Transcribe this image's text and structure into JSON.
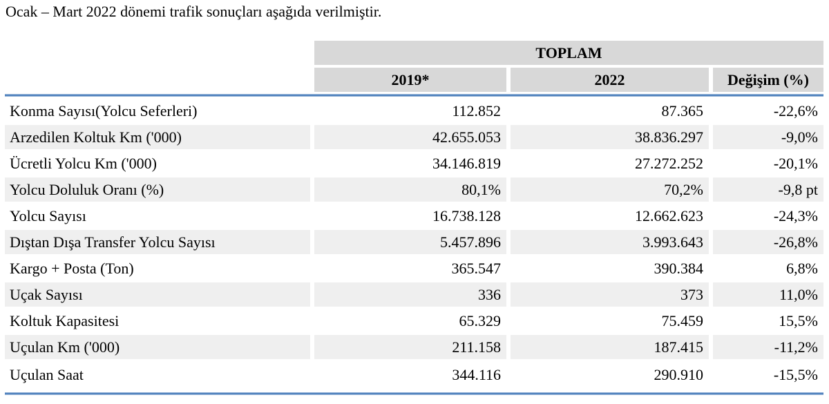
{
  "title": "Ocak – Mart 2022 dönemi trafik sonuçları aşağıda verilmiştir.",
  "table": {
    "group_header": "TOPLAM",
    "columns": [
      "2019*",
      "2022",
      "Değişim (%)"
    ],
    "rows": [
      {
        "label": "Konma Sayısı(Yolcu Seferleri)",
        "y2019": "112.852",
        "y2022": "87.365",
        "change": "-22,6%"
      },
      {
        "label": "Arzedilen Koltuk Km ('000)",
        "y2019": "42.655.053",
        "y2022": "38.836.297",
        "change": "-9,0%"
      },
      {
        "label": "Ücretli Yolcu Km ('000)",
        "y2019": "34.146.819",
        "y2022": "27.272.252",
        "change": "-20,1%"
      },
      {
        "label": "Yolcu Doluluk Oranı (%)",
        "y2019": "80,1%",
        "y2022": "70,2%",
        "change": "-9,8 pt"
      },
      {
        "label": "Yolcu Sayısı",
        "y2019": "16.738.128",
        "y2022": "12.662.623",
        "change": "-24,3%"
      },
      {
        "label": "Dıştan Dışa Transfer Yolcu Sayısı",
        "y2019": "5.457.896",
        "y2022": "3.993.643",
        "change": "-26,8%"
      },
      {
        "label": "Kargo + Posta (Ton)",
        "y2019": "365.547",
        "y2022": "390.384",
        "change": "6,8%"
      },
      {
        "label": "Uçak Sayısı",
        "y2019": "336",
        "y2022": "373",
        "change": "11,0%"
      },
      {
        "label": "Koltuk Kapasitesi",
        "y2019": "65.329",
        "y2022": "75.459",
        "change": "15,5%"
      },
      {
        "label": "Uçulan Km ('000)",
        "y2019": "211.158",
        "y2022": "187.415",
        "change": "-11,2%"
      },
      {
        "label": "Uçulan Saat",
        "y2019": "344.116",
        "y2022": "290.910",
        "change": "-15,5%"
      }
    ]
  },
  "colors": {
    "accent_blue": "#4f81bd",
    "header_gray": "#d8d8d8",
    "stripe_gray": "#efefef"
  }
}
